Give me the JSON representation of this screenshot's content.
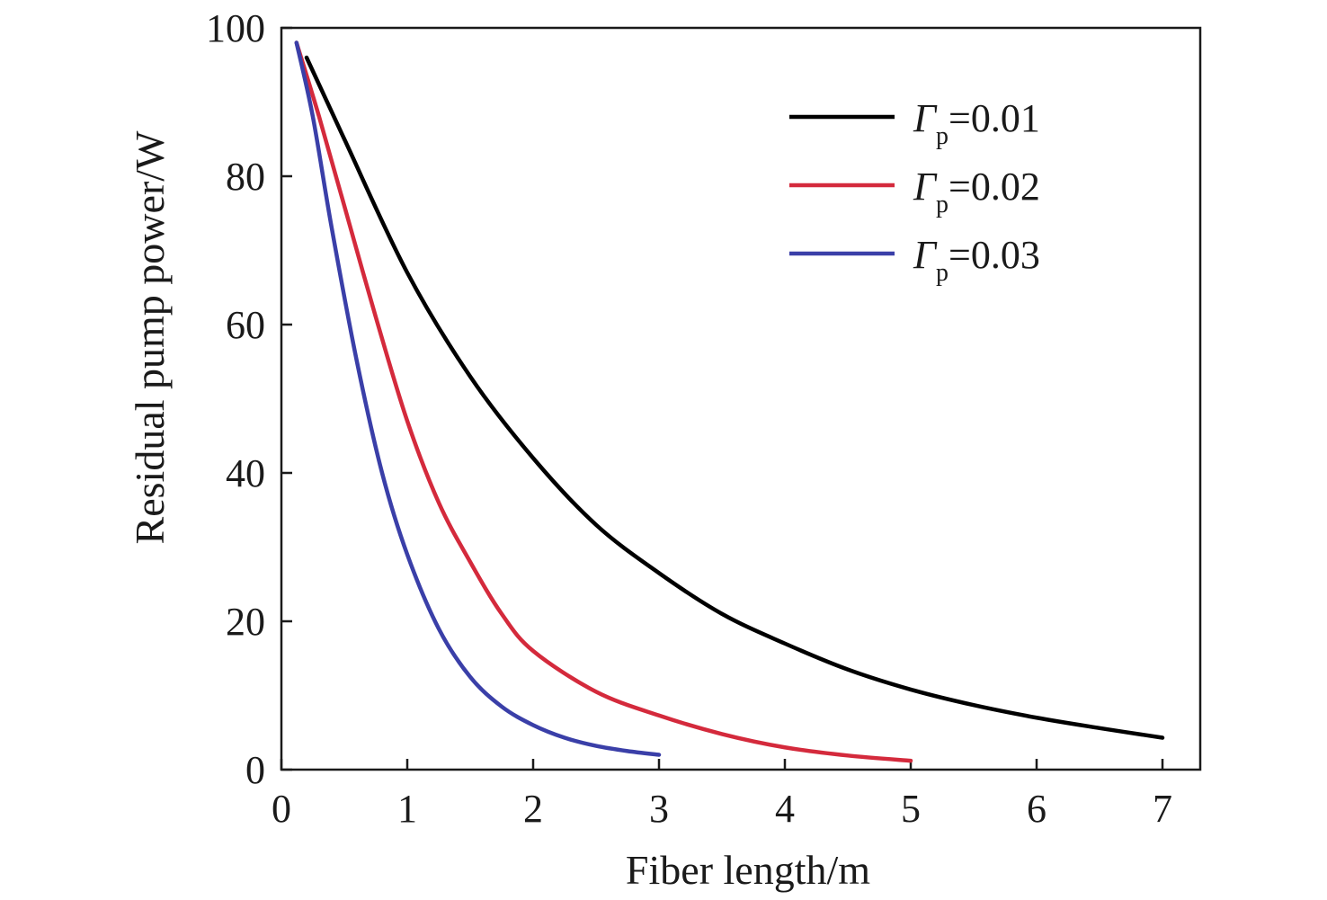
{
  "chart_data": {
    "type": "line",
    "xlabel": "Fiber length/m",
    "ylabel": "Residual pump power/W",
    "xlim": [
      0,
      7.3
    ],
    "ylim": [
      0,
      100
    ],
    "xticks": [
      "0",
      "1",
      "2",
      "3",
      "4",
      "5",
      "6",
      "7"
    ],
    "yticks": [
      "0",
      "20",
      "40",
      "60",
      "80",
      "100"
    ],
    "legend_position": "top-right",
    "series": [
      {
        "name": "Γp=0.01",
        "name_symbol": "Γ",
        "name_sub": "p",
        "name_value": "=0.01",
        "color": "#000000",
        "x": [
          0.2,
          0.5,
          1.0,
          1.5,
          2.0,
          2.5,
          3.0,
          3.5,
          4.0,
          4.5,
          5.0,
          5.5,
          6.0,
          6.5,
          7.0
        ],
        "y": [
          96,
          85,
          67,
          53,
          42,
          33,
          26.5,
          21,
          17,
          13.5,
          10.8,
          8.7,
          7,
          5.6,
          4.3
        ]
      },
      {
        "name": "Γp=0.02",
        "name_symbol": "Γ",
        "name_sub": "p",
        "name_value": "=0.02",
        "color": "#d42a3c",
        "x": [
          0.12,
          0.3,
          0.5,
          0.75,
          1.0,
          1.25,
          1.5,
          1.75,
          2.0,
          2.5,
          3.0,
          3.5,
          4.0,
          4.5,
          5.0
        ],
        "y": [
          98,
          88,
          76,
          61,
          47,
          36,
          28,
          21,
          16,
          10.5,
          7.3,
          4.8,
          3.0,
          1.9,
          1.2
        ]
      },
      {
        "name": "Γp=0.03",
        "name_symbol": "Γ",
        "name_sub": "p",
        "name_value": "=0.03",
        "color": "#3a3fa8",
        "x": [
          0.12,
          0.25,
          0.4,
          0.6,
          0.8,
          1.0,
          1.25,
          1.5,
          1.75,
          2.0,
          2.25,
          2.5,
          2.75,
          3.0
        ],
        "y": [
          98,
          88,
          73,
          55,
          40,
          29,
          19,
          12.5,
          8.5,
          6.0,
          4.3,
          3.2,
          2.5,
          2.0
        ]
      }
    ]
  }
}
